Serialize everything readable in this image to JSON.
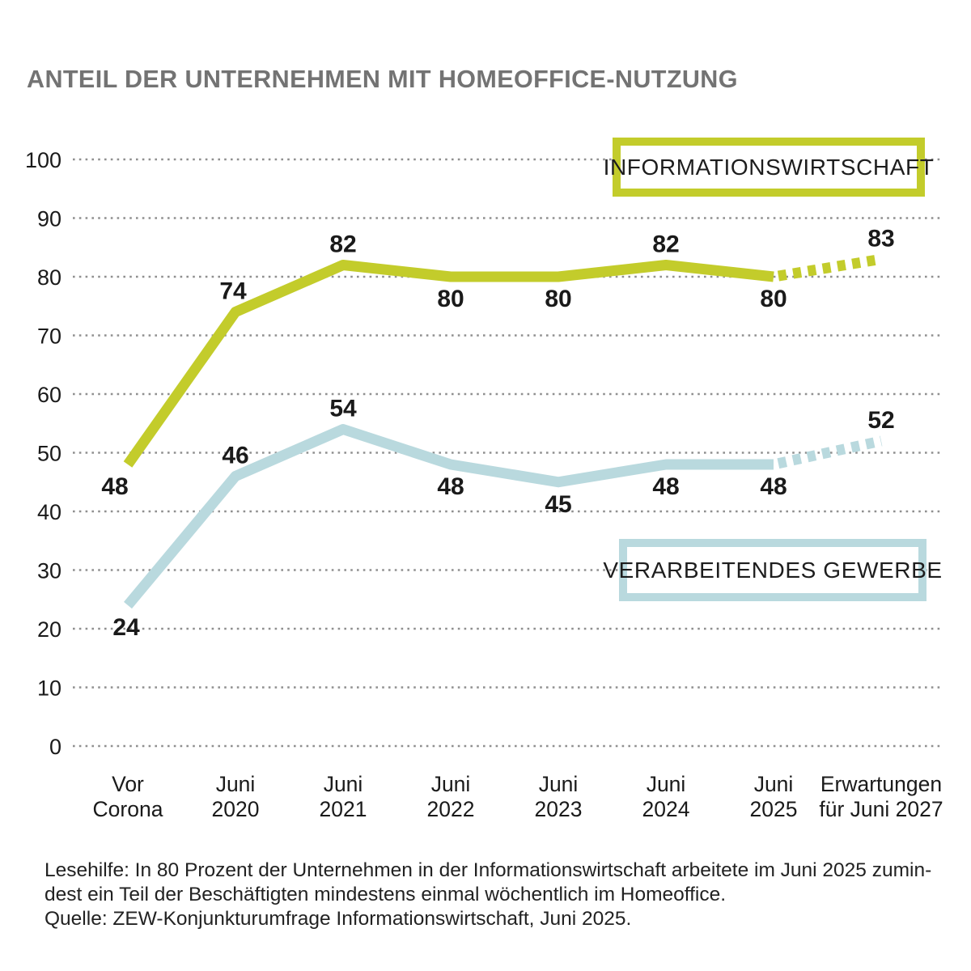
{
  "page": {
    "title": "ANTEIL DER UNTERNEHMEN MIT HOMEOFFICE-NUTZUNG"
  },
  "chart_data": {
    "type": "line",
    "title": "ANTEIL DER UNTERNEHMEN MIT HOMEOFFICE-NUTZUNG",
    "categories": [
      [
        "Vor",
        "Corona"
      ],
      [
        "Juni",
        "2020"
      ],
      [
        "Juni",
        "2021"
      ],
      [
        "Juni",
        "2022"
      ],
      [
        "Juni",
        "2023"
      ],
      [
        "Juni",
        "2024"
      ],
      [
        "Juni",
        "2025"
      ],
      [
        "Erwartungen",
        "für Juni 2027"
      ]
    ],
    "ylim": [
      0,
      100
    ],
    "yticks": [
      0,
      10,
      20,
      30,
      40,
      50,
      60,
      70,
      80,
      90,
      100
    ],
    "grid": "dotted-horizontal",
    "legend_position": "inside-right",
    "forecast_from_index": 6,
    "forecast_style": "dashed",
    "series": [
      {
        "name": "Informationswirtschaft",
        "color": "#c3cc2b",
        "values": [
          48,
          74,
          82,
          80,
          80,
          82,
          80,
          83
        ],
        "label_placement": [
          "below",
          "above",
          "above",
          "below",
          "below",
          "above",
          "below",
          "above"
        ]
      },
      {
        "name": "Verarbeitendes Gewerbe",
        "color": "#b9d9de",
        "values": [
          24,
          46,
          54,
          48,
          45,
          48,
          48,
          52
        ],
        "label_placement": [
          "below",
          "above",
          "above",
          "below",
          "below",
          "below",
          "below",
          "above"
        ]
      }
    ]
  },
  "legend": {
    "informationswirtschaft": "INFORMATIONSWIRTSCHAFT",
    "verarbeitendes_gewerbe": "VERARBEITENDES GEWERBE"
  },
  "footer": {
    "line1": "Lesehilfe: In 80 Prozent der Unternehmen in der Informationswirtschaft arbeitete im Juni 2025 zumin-",
    "line2": "dest ein Teil der Beschäftigten mindestens einmal wöchentlich im Homeoffice.",
    "line3": "Quelle: ZEW-Konjunkturumfrage Informationswirtschaft, Juni 2025."
  },
  "colors": {
    "informationswirtschaft": "#c3cc2b",
    "verarbeitendes_gewerbe": "#b9d9de",
    "title_gray": "#737373",
    "grid_gray": "#8f8f8f",
    "text_dark": "#1a1a1a"
  }
}
